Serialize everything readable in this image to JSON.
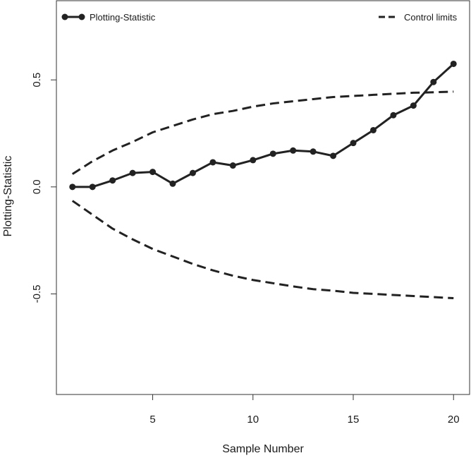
{
  "chart_data": {
    "type": "line",
    "title": "",
    "xlabel": "Sample Number",
    "ylabel": "Plotting-Statistic",
    "xlim": [
      0.2,
      20.8
    ],
    "ylim": [
      -0.97,
      0.87
    ],
    "xticks": [
      5,
      10,
      15,
      20
    ],
    "yticks": [
      -0.5,
      0.0,
      0.5
    ],
    "ytick_labels": [
      "-0.5",
      "0.0",
      "0.5"
    ],
    "xtick_labels": [
      "5",
      "10",
      "15",
      "20"
    ],
    "grid": false,
    "legend": [
      {
        "label": "Plotting-Statistic",
        "style": "solid-points",
        "placement": "top-left"
      },
      {
        "label": "Control limits",
        "style": "dashed",
        "placement": "top-right"
      }
    ],
    "x": [
      1,
      2,
      3,
      4,
      5,
      6,
      7,
      8,
      9,
      10,
      11,
      12,
      13,
      14,
      15,
      16,
      17,
      18,
      19,
      20
    ],
    "series": [
      {
        "name": "Plotting-Statistic",
        "style": "solid",
        "markers": true,
        "values": [
          0.0,
          0.0,
          0.03,
          0.065,
          0.07,
          0.015,
          0.065,
          0.115,
          0.1,
          0.125,
          0.155,
          0.17,
          0.165,
          0.145,
          0.205,
          0.265,
          0.335,
          0.38,
          0.49,
          0.575
        ]
      },
      {
        "name": "Control limits",
        "style": "dashed",
        "markers": false,
        "values": [
          0.06,
          0.12,
          0.17,
          0.21,
          0.255,
          0.285,
          0.315,
          0.34,
          0.355,
          0.375,
          0.39,
          0.4,
          0.41,
          0.42,
          0.425,
          0.43,
          0.435,
          0.44,
          0.442,
          0.445
        ]
      },
      {
        "name": "Control limits",
        "style": "dashed",
        "markers": false,
        "values": [
          -0.065,
          -0.13,
          -0.195,
          -0.245,
          -0.29,
          -0.325,
          -0.36,
          -0.39,
          -0.415,
          -0.435,
          -0.45,
          -0.465,
          -0.478,
          -0.485,
          -0.495,
          -0.5,
          -0.505,
          -0.51,
          -0.515,
          -0.52
        ]
      }
    ],
    "colors": {
      "line": "#222222",
      "axis": "#333333"
    }
  }
}
